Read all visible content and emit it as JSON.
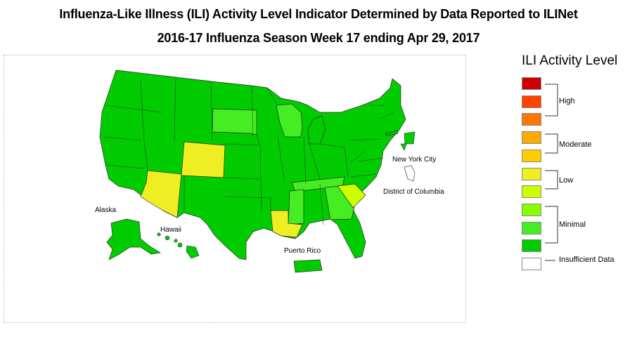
{
  "titles": {
    "line1": "Influenza-Like Illness (ILI) Activity Level Indicator Determined by Data Reported to ILINet",
    "line2": "2016-17 Influenza Season Week 17 ending Apr 29, 2017"
  },
  "map": {
    "labels": {
      "alaska": "Alaska",
      "hawaii": "Hawaii",
      "puerto_rico": "Puerto Rico",
      "new_york_city": "New York City",
      "district_of_columbia": "District of Columbia"
    },
    "levels": {
      "minimal_low": [
        "Alaska",
        "Hawaii",
        "Puerto Rico",
        "New York City",
        "District of Columbia"
      ],
      "minimal_3": [
        "South Dakota",
        "Wisconsin",
        "Mississippi",
        "Georgia",
        "Tennessee"
      ],
      "low_5": [
        "Wyoming",
        "Arizona",
        "Louisiana"
      ],
      "low_4": [
        "South Carolina"
      ]
    },
    "colors": {
      "minimal_1": "#00cc00",
      "minimal_2": "#44ee22",
      "minimal_3": "#88ff00",
      "low_4": "#ccff00",
      "low_5": "#eeee22",
      "insufficient": "#ffffff"
    }
  },
  "legend": {
    "title": "ILI Activity Level",
    "swatches": [
      "#cc0000",
      "#ff4400",
      "#ff7700",
      "#ffaa00",
      "#ffcc00",
      "#eeee22",
      "#ccff00",
      "#88ff00",
      "#44ee22",
      "#00cc00",
      "#ffffff"
    ],
    "groups": {
      "high": "High",
      "moderate": "Moderate",
      "low": "Low",
      "minimal": "Minimal",
      "insufficient": "Insufficient Data"
    }
  }
}
